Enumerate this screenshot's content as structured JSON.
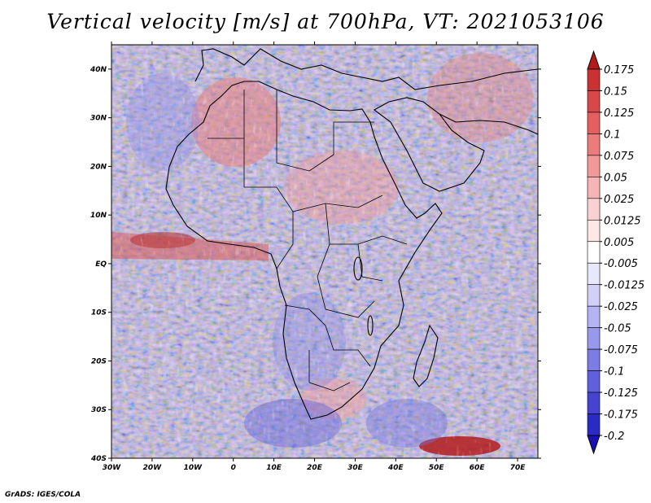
{
  "title": "Vertical velocity [m/s] at 700hPa, VT: 2021053106",
  "credit": "GrADS: IGES/COLA",
  "map": {
    "projection": "lat-lon",
    "lon_range": [
      -30,
      75
    ],
    "lat_range": [
      -40,
      45
    ],
    "lon_ticks": [
      "30W",
      "20W",
      "10W",
      "0",
      "10E",
      "20E",
      "30E",
      "40E",
      "50E",
      "60E",
      "70E"
    ],
    "lat_ticks": [
      "40N",
      "30N",
      "20N",
      "10N",
      "EQ",
      "10S",
      "20S",
      "30S",
      "40S"
    ],
    "region": "Africa",
    "field": "vertical velocity (omega-like) shaded",
    "colors": {
      "positive_strong": "#b41c1c",
      "negative_strong": "#1a10b4",
      "neutral": "#ffffff"
    }
  },
  "colorbar": {
    "labels": [
      "0.175",
      "0.15",
      "0.125",
      "0.1",
      "0.075",
      "0.05",
      "0.025",
      "0.0125",
      "0.005",
      "-0.005",
      "-0.0125",
      "-0.025",
      "-0.05",
      "-0.075",
      "-0.1",
      "-0.125",
      "-0.175",
      "-0.2"
    ],
    "colors": [
      "#b41c1c",
      "#c83232",
      "#d84848",
      "#e46060",
      "#ec7c7c",
      "#f29898",
      "#f6b4b4",
      "#fad0d0",
      "#fde8e8",
      "#ffffff",
      "#e8e8fc",
      "#d0d0f8",
      "#b4b4f2",
      "#9898ec",
      "#7c7ce4",
      "#6060dc",
      "#4444d0",
      "#2a2ac4",
      "#1a10b4"
    ]
  }
}
